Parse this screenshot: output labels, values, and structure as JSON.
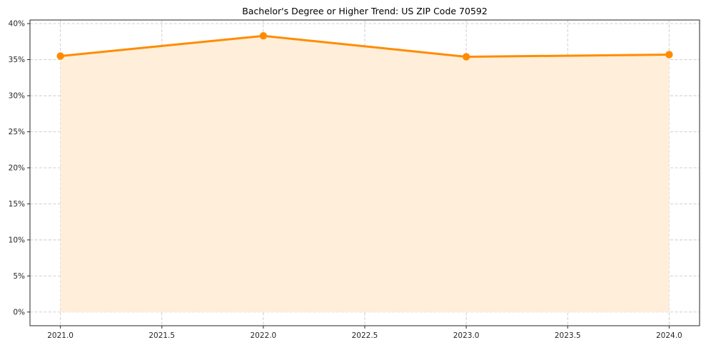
{
  "chart_data": {
    "type": "area",
    "title": "Bachelor's Degree or Higher Trend: US ZIP Code 70592",
    "x": [
      2021,
      2022,
      2023,
      2024
    ],
    "values": [
      35.5,
      38.3,
      35.4,
      35.7
    ],
    "series_name": "Bachelor's Degree or Higher (%)",
    "xticks": [
      2021.0,
      2021.5,
      2022.0,
      2022.5,
      2023.0,
      2023.5,
      2024.0
    ],
    "xtick_labels": [
      "2021.0",
      "2021.5",
      "2022.0",
      "2022.5",
      "2023.0",
      "2023.5",
      "2024.0"
    ],
    "yticks": [
      0,
      5,
      10,
      15,
      20,
      25,
      30,
      35,
      40
    ],
    "ytick_labels": [
      "0%",
      "5%",
      "10%",
      "15%",
      "20%",
      "25%",
      "30%",
      "35%",
      "40%"
    ],
    "xlim": [
      2020.85,
      2024.15
    ],
    "ylim": [
      -1.9,
      40.5
    ],
    "grid": true,
    "grid_style": "dashed",
    "legend": null,
    "line_color": "#ff8c00",
    "marker_color": "#ff8c00",
    "fill_color": "#ffeeda",
    "grid_color": "#c9c9c9",
    "axis_color": "#262626",
    "baseline": 0
  }
}
